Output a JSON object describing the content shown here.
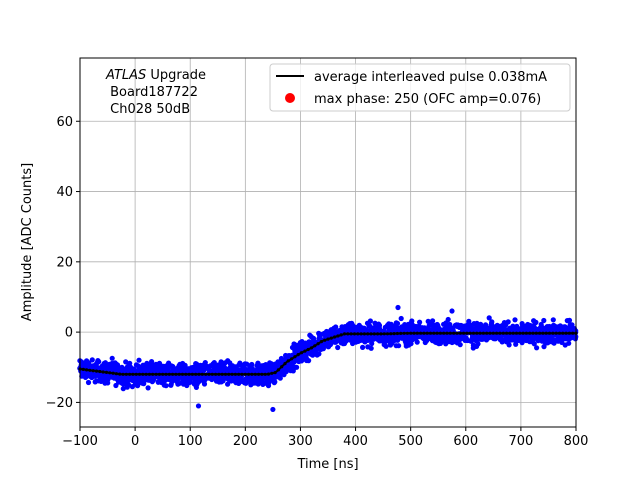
{
  "chart_data": {
    "type": "scatter",
    "title": "",
    "xlabel": "Time [ns]",
    "ylabel": "Amplitude [ADC Counts]",
    "xlim": [
      -100,
      800
    ],
    "ylim": [
      -27,
      78
    ],
    "xticks": [
      -100,
      0,
      100,
      200,
      300,
      400,
      500,
      600,
      700,
      800
    ],
    "yticks": [
      -20,
      0,
      20,
      40,
      60
    ],
    "grid": true,
    "legend_position": "top-right",
    "annotation": {
      "line1_italic": "ATLAS",
      "line1_rest": " Upgrade",
      "line2": " Board187722",
      "line3": " Ch028 50dB"
    },
    "series": [
      {
        "name": "average interleaved pulse 0.038mA",
        "kind": "line",
        "color": "#000000",
        "x": [
          -100,
          -75,
          -50,
          -25,
          0,
          50,
          100,
          150,
          200,
          240,
          255,
          265,
          275,
          290,
          300,
          320,
          340,
          360,
          380,
          400,
          450,
          500,
          550,
          600,
          650,
          700,
          750,
          800
        ],
        "y": [
          -10.5,
          -11,
          -11.5,
          -12,
          -12,
          -12,
          -12,
          -12,
          -12,
          -12,
          -11.5,
          -10,
          -8.5,
          -7,
          -6,
          -4.5,
          -2.5,
          -1.5,
          -0.5,
          -0.5,
          -0.5,
          -0.3,
          -0.3,
          -0.3,
          -0.3,
          -0.3,
          -0.3,
          -0.3
        ]
      },
      {
        "name": "max phase: 250 (OFC amp=0.076)",
        "kind": "marker",
        "color": "#ff0000",
        "x": [],
        "y": []
      },
      {
        "name": "",
        "kind": "scatter",
        "color": "#0000ff",
        "description_band_halfwidth": 4,
        "outliers": [
          {
            "x": 115,
            "y": -21
          },
          {
            "x": 250,
            "y": -22
          },
          {
            "x": 477,
            "y": 7
          },
          {
            "x": 575,
            "y": 6
          }
        ]
      }
    ]
  }
}
